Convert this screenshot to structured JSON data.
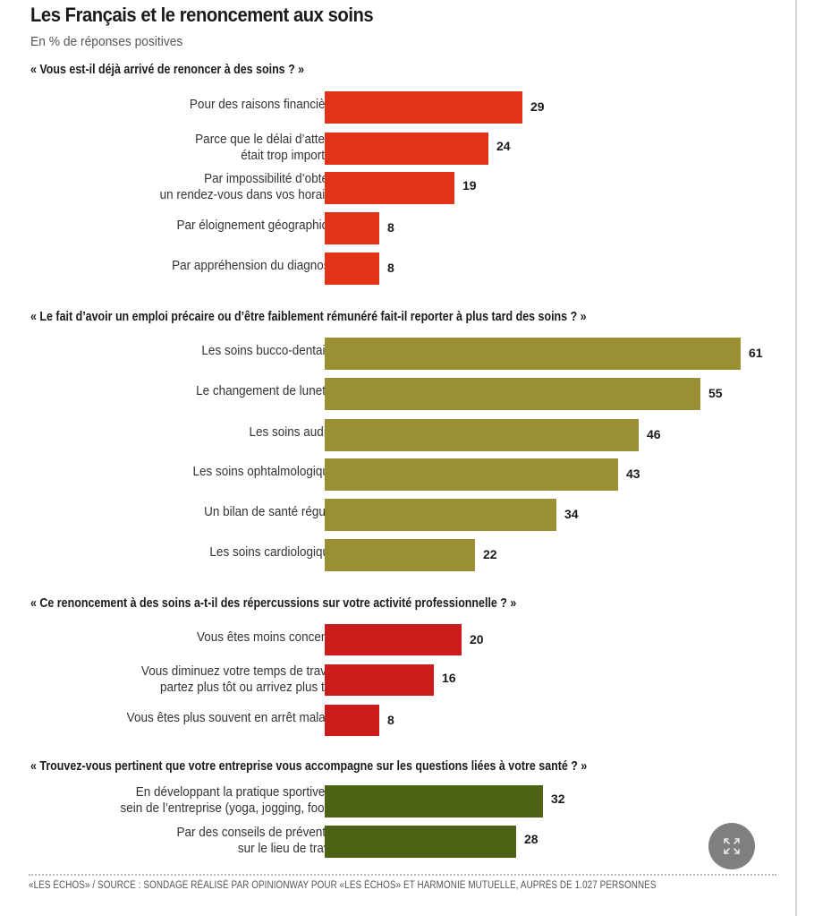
{
  "chart_data": {
    "type": "bar",
    "orientation": "horizontal",
    "title": "Les Français et le renoncement aux soins",
    "subtitle": "En % de réponses positives",
    "xlim": [
      0,
      65
    ],
    "grid": false,
    "sections": [
      {
        "question": "« Vous est-il déjà arrivé de renoncer à des soins ? »",
        "color": "#E23217",
        "categories": [
          [
            "Pour des raisons financières"
          ],
          [
            "Parce que le délai d’attente",
            "était trop important"
          ],
          [
            "Par impossibilité d’obtenir",
            "un rendez-vous dans vos horaires"
          ],
          [
            "Par éloignement géographique"
          ],
          [
            "Par appréhension du diagnostic"
          ]
        ],
        "values": [
          29,
          24,
          19,
          8,
          8
        ]
      },
      {
        "question": "« Le fait d’avoir un emploi précaire ou d’être faiblement rémunéré fait-il reporter à plus tard des soins ? »",
        "color": "#9B8F33",
        "categories": [
          [
            "Les soins bucco-dentaires"
          ],
          [
            "Le changement de lunettes"
          ],
          [
            "Les soins auditifs"
          ],
          [
            "Les soins ophtalmologiques"
          ],
          [
            "Un bilan de santé régulier"
          ],
          [
            "Les soins cardiologiques"
          ]
        ],
        "values": [
          61,
          55,
          46,
          43,
          34,
          22
        ]
      },
      {
        "question": "« Ce renoncement à des soins a-t-il des répercussions sur votre activité professionnelle ? »",
        "color": "#CC1B1B",
        "categories": [
          [
            "Vous êtes moins concentré"
          ],
          [
            "Vous diminuez votre temps de travail,",
            "partez plus tôt ou arrivez plus tard"
          ],
          [
            "Vous êtes plus souvent en arrêt maladie"
          ]
        ],
        "values": [
          20,
          16,
          8
        ]
      },
      {
        "question": "« Trouvez-vous pertinent que votre entreprise vous accompagne sur les questions liées à votre santé ? »",
        "color": "#4E6216",
        "categories": [
          [
            "En développant la pratique sportive au",
            "sein de l’entreprise (yoga, jogging, foot...)"
          ],
          [
            "Par des conseils de prévention",
            "sur le lieu de travail"
          ]
        ],
        "values": [
          32,
          28
        ]
      }
    ],
    "source": "«LES ÉCHOS» / SOURCE : SONDAGE RÉALISÉ PAR OPINIONWAY POUR «LES ÉCHOS» ET HARMONIE MUTUELLE, AUPRÈS DE 1.027 PERSONNES"
  },
  "ui": {
    "expand_icon": "expand-arrows-icon"
  }
}
